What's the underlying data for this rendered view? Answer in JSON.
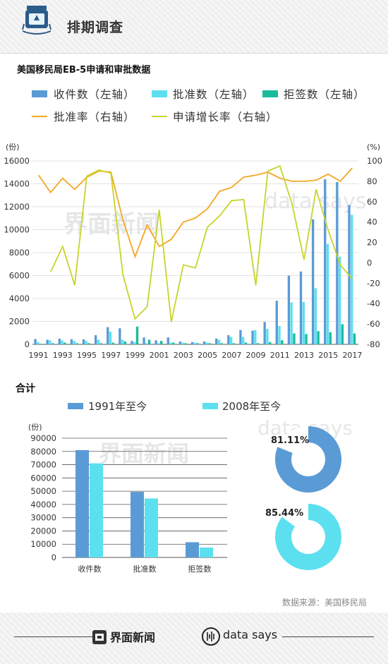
{
  "header": {
    "title": "排期调查"
  },
  "chart_title": "美国移民局EB-5申请和审批数据",
  "chart_data": [
    {
      "type": "bar",
      "x": [
        1991,
        1992,
        1993,
        1994,
        1995,
        1996,
        1997,
        1998,
        1999,
        2000,
        2001,
        2002,
        2003,
        2004,
        2005,
        2006,
        2007,
        2008,
        2009,
        2010,
        2011,
        2012,
        2013,
        2014,
        2015,
        2016,
        2017
      ],
      "x_tick_labels": [
        "1991",
        "1993",
        "1995",
        "1997",
        "1999",
        "2001",
        "2003",
        "2005",
        "2007",
        "2009",
        "2011",
        "2013",
        "2015",
        "2017"
      ],
      "left_axis": {
        "unit": "(份)",
        "ylim": [
          0,
          16000
        ],
        "ticks": [
          "0",
          "2000",
          "4000",
          "6000",
          "8000",
          "10000",
          "12000",
          "14000",
          "16000"
        ]
      },
      "right_axis": {
        "unit": "(%)",
        "ylim": [
          -80,
          100
        ],
        "ticks": [
          "-80",
          "-60",
          "-40",
          "-20",
          "0",
          "20",
          "40",
          "60",
          "80",
          "100"
        ]
      },
      "series": [
        {
          "name": "收件数（左轴）",
          "kind": "bar",
          "axis": "left",
          "color": "#5b9bd5",
          "values": [
            460,
            400,
            500,
            450,
            440,
            800,
            1500,
            1400,
            300,
            600,
            350,
            600,
            250,
            200,
            250,
            500,
            800,
            1250,
            1200,
            1950,
            3800,
            6000,
            6350,
            10900,
            14400,
            14150,
            12150
          ]
        },
        {
          "name": "批准数（左轴）",
          "kind": "bar",
          "axis": "left",
          "color": "#5ce0f0",
          "values": [
            200,
            350,
            350,
            300,
            300,
            400,
            1100,
            400,
            200,
            100,
            100,
            150,
            150,
            150,
            150,
            400,
            650,
            650,
            1250,
            1350,
            1600,
            3650,
            3700,
            4900,
            8750,
            7650,
            11300
          ]
        },
        {
          "name": "拒签数（左轴）",
          "kind": "bar",
          "axis": "left",
          "color": "#1abc9c",
          "values": [
            50,
            100,
            150,
            100,
            100,
            100,
            150,
            250,
            1550,
            400,
            300,
            150,
            100,
            100,
            100,
            100,
            100,
            150,
            100,
            200,
            350,
            950,
            900,
            1150,
            1050,
            1750,
            950
          ]
        },
        {
          "name": "批准率（右轴）",
          "kind": "line",
          "axis": "right",
          "color": "#f5a623",
          "values": [
            86,
            69,
            83,
            72,
            84,
            90,
            89,
            42,
            6,
            37,
            16,
            23,
            40,
            44,
            53,
            70,
            74,
            84,
            86,
            89,
            83,
            80,
            80,
            81,
            87,
            80,
            93
          ]
        },
        {
          "name": "申请增长率（右轴）",
          "kind": "line",
          "axis": "right",
          "color": "#c8d42a",
          "values": [
            null,
            -9,
            16,
            -22,
            85,
            91,
            88,
            -12,
            -55,
            -43,
            52,
            -58,
            -2,
            -5,
            35,
            46,
            61,
            62,
            -22,
            90,
            95,
            58,
            3,
            72,
            32,
            -2,
            -16
          ]
        }
      ]
    },
    {
      "type": "bar",
      "title": "合计",
      "categories": [
        "收件数",
        "批准数",
        "拒签数"
      ],
      "y_unit": "(份)",
      "ylim": [
        0,
        90000
      ],
      "ticks": [
        "0",
        "10000",
        "20000",
        "30000",
        "40000",
        "50000",
        "60000",
        "70000",
        "80000",
        "90000"
      ],
      "series": [
        {
          "name": "1991年至今",
          "color": "#5b9bd5",
          "values": [
            81000,
            49500,
            11500
          ]
        },
        {
          "name": "2008年至今",
          "color": "#5ce0f0",
          "values": [
            71000,
            44500,
            7500
          ]
        }
      ]
    },
    {
      "type": "pie",
      "donuts": [
        {
          "label": "81.11%",
          "value": 81.11,
          "color": "#5b9bd5"
        },
        {
          "label": "85.44%",
          "value": 85.44,
          "color": "#5ce0f0"
        }
      ]
    }
  ],
  "watermark": {
    "brand_cn": "界面新闻",
    "brand_en": "data says"
  },
  "source": "数据来源：美国移民局",
  "footer": {
    "brand1": "界面新闻",
    "brand2": "data says"
  }
}
